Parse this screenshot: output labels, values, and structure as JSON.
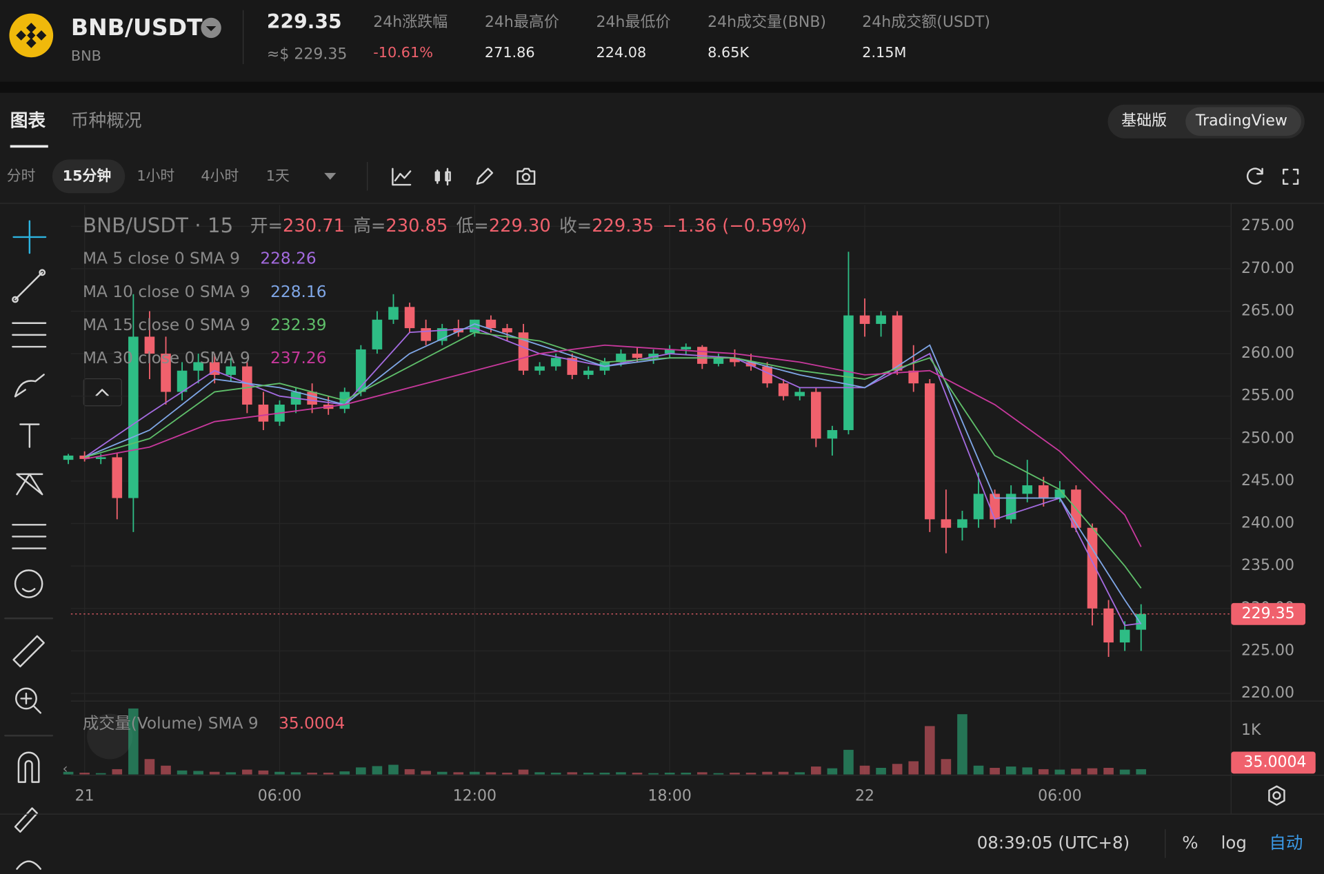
{
  "header": {
    "pair": "BNB/USDT",
    "base": "BNB",
    "price": "229.35",
    "price_usd": "≈$ 229.35",
    "stats": [
      {
        "label": "24h涨跌幅",
        "value": "-10.61%"
      },
      {
        "label": "24h最高价",
        "value": "271.86"
      },
      {
        "label": "24h最低价",
        "value": "224.08"
      },
      {
        "label": "24h成交量(BNB)",
        "value": "8.65K"
      },
      {
        "label": "24h成交额(USDT)",
        "value": "2.15M"
      }
    ]
  },
  "tabs": [
    "图表",
    "币种概况"
  ],
  "modes": [
    "基础版",
    "TradingView"
  ],
  "intervals": [
    "分时",
    "15分钟",
    "1小时",
    "4小时",
    "1天"
  ],
  "chart_data": {
    "type": "candlestick",
    "title": "BNB/USDT · 15",
    "ohlc_legend": [
      {
        "label": "开=",
        "value": "230.71"
      },
      {
        "label": "高=",
        "value": "230.85"
      },
      {
        "label": "低=",
        "value": "229.30"
      },
      {
        "label": "收=",
        "value": "229.35"
      }
    ],
    "change": "−1.36 (−0.59%)",
    "up_color": "#2ebd85",
    "down_color": "#f0616d",
    "x": [
      -0.5,
      0,
      0.5,
      1,
      1.5,
      2,
      2.5,
      3,
      3.5,
      4,
      4.5,
      5,
      5.5,
      6,
      6.5,
      7,
      7.5,
      8,
      8.5,
      9,
      9.5,
      10,
      10.5,
      11,
      11.5,
      12,
      12.5,
      13,
      13.5,
      14,
      14.5,
      15,
      15.5,
      16,
      16.5,
      17,
      17.5,
      18,
      18.5,
      19,
      19.5,
      20,
      20.5,
      21,
      21.5,
      22,
      22.5,
      23,
      23.5,
      24,
      24.5,
      25,
      25.5,
      26,
      26.5,
      27,
      27.5,
      28,
      28.5,
      29,
      29.5,
      30,
      30.5,
      31,
      31.5,
      32,
      32.5
    ],
    "open": [
      247.5,
      248,
      247.6,
      247.8,
      243,
      262,
      260,
      255.5,
      258,
      259,
      257.5,
      258.5,
      254,
      252,
      254,
      255.5,
      254,
      253.5,
      255.5,
      260.5,
      264,
      265.5,
      263,
      261.5,
      263,
      262.5,
      264,
      263,
      262.5,
      258,
      258.5,
      259.5,
      257.5,
      258,
      259,
      260,
      259.5,
      260,
      260.5,
      260.8,
      258.8,
      259.5,
      259,
      258.5,
      256.5,
      255,
      255.5,
      250,
      251,
      264.5,
      263.5,
      264.5,
      258,
      256.5,
      240.5,
      239.5,
      240.5,
      243.5,
      240.5,
      243.5,
      244.5,
      243,
      244,
      239.5,
      230,
      226,
      227.5
    ],
    "high": [
      248.2,
      248.5,
      248.2,
      248.3,
      267,
      265,
      262,
      259,
      260,
      260,
      259.5,
      259,
      255.5,
      254.5,
      256,
      256.5,
      255,
      256,
      261,
      265,
      267,
      266,
      264,
      263.5,
      264,
      264,
      264.5,
      263.5,
      263.5,
      259,
      260,
      260,
      258.5,
      259.5,
      260.5,
      260.8,
      260.5,
      261,
      261.2,
      261,
      260,
      260.5,
      260,
      259,
      257,
      256,
      256,
      251.5,
      272,
      266.5,
      265,
      265,
      261,
      257,
      244,
      241.5,
      246,
      244,
      244.5,
      247.5,
      245.5,
      245,
      244.5,
      240,
      231,
      228.5,
      230.5
    ],
    "low": [
      247,
      247.3,
      247,
      240.5,
      239,
      257,
      254,
      254.5,
      256.5,
      256.5,
      256.8,
      253,
      251,
      251.5,
      253,
      253,
      252.8,
      253,
      255,
      260,
      263.5,
      262.5,
      261,
      261,
      262,
      262,
      262.5,
      261.5,
      257.5,
      257.5,
      258,
      257,
      257,
      257.5,
      258.5,
      259,
      258.8,
      259.5,
      259.8,
      258.2,
      258.5,
      258.5,
      258,
      256,
      254.5,
      254.5,
      249,
      248,
      250.5,
      262,
      262,
      257.5,
      255.5,
      239,
      236.5,
      238,
      239.5,
      239.5,
      240,
      242.5,
      242,
      242.5,
      239,
      228,
      224.3,
      225,
      225
    ],
    "close": [
      248,
      247.6,
      247.8,
      243,
      262,
      260,
      255.5,
      258,
      259,
      257.5,
      258.5,
      254,
      252,
      254,
      255.5,
      254,
      253.5,
      255.5,
      260.5,
      264,
      265.5,
      263,
      261.5,
      263,
      262.5,
      264,
      263,
      262.5,
      258,
      258.5,
      259.5,
      257.5,
      258,
      259,
      260,
      259.5,
      260,
      260.5,
      260.8,
      258.8,
      259.5,
      259,
      258.5,
      256.5,
      255,
      255.5,
      250,
      251,
      264.5,
      263.5,
      264.5,
      258,
      256.5,
      240.5,
      239.5,
      240.5,
      243.5,
      240.5,
      243.5,
      244.5,
      243,
      244,
      239.5,
      230,
      226,
      227.5,
      229.35
    ],
    "xlim": [
      -0.42,
      35.27
    ],
    "xticks": [
      {
        "value": 0,
        "label": "21"
      },
      {
        "value": 6,
        "label": "06:00"
      },
      {
        "value": 12,
        "label": "12:00"
      },
      {
        "value": 18,
        "label": "18:00"
      },
      {
        "value": 24,
        "label": "22"
      },
      {
        "value": 30,
        "label": "06:00"
      }
    ],
    "ylim": [
      219.2,
      277.5
    ],
    "yticks": [
      {
        "value": 220,
        "label": "220.00"
      },
      {
        "value": 225,
        "label": "225.00"
      },
      {
        "value": 230,
        "label": "230.00"
      },
      {
        "value": 235,
        "label": "235.00"
      },
      {
        "value": 240,
        "label": "240.00"
      },
      {
        "value": 245,
        "label": "245.00"
      },
      {
        "value": 250,
        "label": "250.00"
      },
      {
        "value": 255,
        "label": "255.00"
      },
      {
        "value": 260,
        "label": "260.00"
      },
      {
        "value": 265,
        "label": "265.00"
      },
      {
        "value": 270,
        "label": "270.00"
      },
      {
        "value": 275,
        "label": "275.00"
      }
    ],
    "grid": true,
    "last_price": 229.35,
    "moving_averages": [
      {
        "name": "MA 5 close 0 SMA 9",
        "value": 228.26,
        "color": "#a46be0",
        "x": [
          0,
          2,
          4,
          6,
          8,
          10,
          12,
          14,
          16,
          18,
          20,
          22,
          24,
          26,
          28,
          30,
          32,
          32.5
        ],
        "values": [
          247.8,
          253,
          258,
          255,
          254,
          262.5,
          263,
          260,
          258.5,
          260,
          259.5,
          256,
          256,
          260,
          240.5,
          243,
          228,
          228.26
        ]
      },
      {
        "name": "MA 10 close 0 SMA 9",
        "value": 228.16,
        "color": "#7fa6e6",
        "x": [
          0,
          2,
          4,
          6,
          8,
          10,
          12,
          14,
          16,
          18,
          20,
          22,
          24,
          26,
          28,
          30,
          32,
          32.5
        ],
        "values": [
          247.8,
          251,
          257,
          256,
          254,
          260,
          263.5,
          261,
          258.5,
          259.5,
          259.5,
          257.5,
          256,
          261,
          243,
          243,
          231,
          228.16
        ]
      },
      {
        "name": "MA 15 close 0 SMA 9",
        "value": 232.39,
        "color": "#5fbf6a",
        "x": [
          0,
          2,
          4,
          6,
          8,
          10,
          12,
          14,
          16,
          18,
          20,
          22,
          24,
          26,
          28,
          30,
          32,
          32.5
        ],
        "values": [
          247.8,
          250,
          255.5,
          256.5,
          254.5,
          258.5,
          262.5,
          261.5,
          259,
          259.5,
          259.5,
          258,
          257,
          259.5,
          248,
          244,
          235,
          232.39
        ]
      },
      {
        "name": "MA 30 close 0 SMA 9",
        "value": 237.26,
        "color": "#c8399d",
        "x": [
          0,
          2,
          4,
          6,
          8,
          10,
          12,
          14,
          16,
          18,
          20,
          22,
          24,
          26,
          28,
          30,
          32,
          32.5
        ],
        "values": [
          247.6,
          249,
          252,
          253,
          254,
          256,
          258,
          260,
          261,
          260.5,
          260,
          259,
          257.5,
          258,
          254,
          248.5,
          241,
          237.26
        ]
      }
    ],
    "volume": {
      "title": "成交量(Volume) SMA 9",
      "value": 35.0004,
      "values": [
        60,
        40,
        30,
        120,
        1500,
        350,
        200,
        90,
        80,
        60,
        50,
        110,
        90,
        60,
        50,
        40,
        40,
        70,
        160,
        190,
        220,
        120,
        80,
        60,
        50,
        60,
        50,
        40,
        110,
        50,
        40,
        50,
        40,
        40,
        50,
        40,
        30,
        40,
        40,
        50,
        30,
        40,
        40,
        60,
        60,
        50,
        180,
        140,
        560,
        200,
        150,
        240,
        300,
        1100,
        350,
        1370,
        200,
        150,
        180,
        160,
        120,
        110,
        130,
        140,
        150,
        110,
        120
      ],
      "ylim": [
        0,
        1650
      ],
      "yticks": [
        {
          "value": 1000,
          "label": "1K"
        }
      ]
    }
  },
  "footer": {
    "time": "08:39:05 (UTC+8)",
    "options": [
      "%",
      "log",
      "自动"
    ]
  }
}
